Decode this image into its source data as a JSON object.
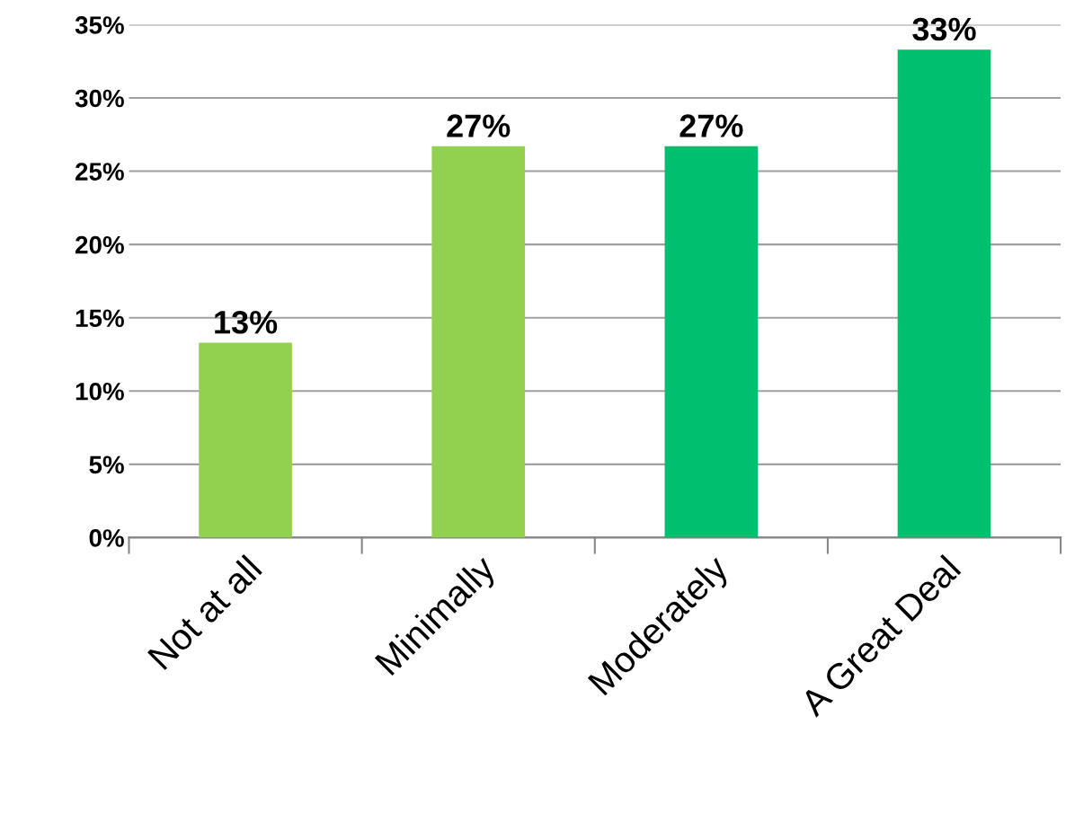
{
  "chart_data": {
    "type": "bar",
    "categories": [
      "Not at all",
      "Minimally",
      "Moderately",
      "A Great Deal"
    ],
    "values": [
      13.3,
      26.7,
      26.7,
      33.3
    ],
    "colors": [
      "#92d050",
      "#92d050",
      "#00bf6f",
      "#00bf6f"
    ],
    "value_labels": [
      "13%",
      "27%",
      "27%",
      "33%"
    ],
    "ylim": [
      0,
      35
    ],
    "yticks": [
      {
        "value": 0,
        "label": "0%"
      },
      {
        "value": 5,
        "label": "5%"
      },
      {
        "value": 10,
        "label": "10%"
      },
      {
        "value": 15,
        "label": "15%"
      },
      {
        "value": 20,
        "label": "20%"
      },
      {
        "value": 25,
        "label": "25%"
      },
      {
        "value": 30,
        "label": "30%"
      },
      {
        "value": 35,
        "label": "35%"
      }
    ],
    "grid": "y",
    "legend": false
  }
}
